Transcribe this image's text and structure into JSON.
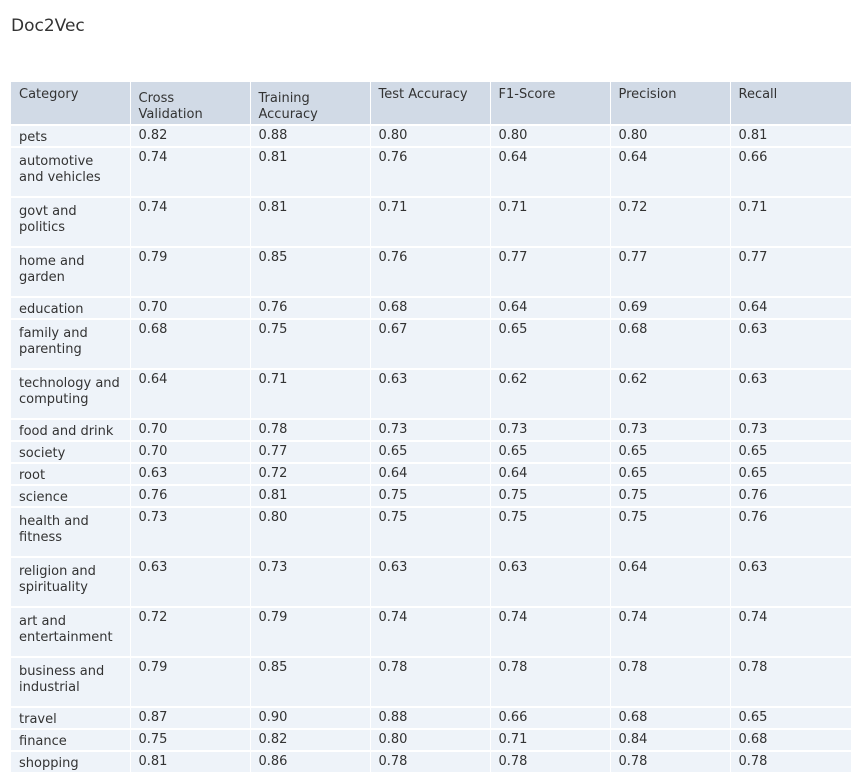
{
  "heading": "Doc2Vec",
  "table": {
    "columns": [
      "Category",
      "Cross Validation",
      "Training Accuracy",
      "Test Accuracy",
      "F1-Score",
      "Precision",
      "Recall"
    ],
    "rows": [
      [
        "pets",
        "0.82",
        "0.88",
        "0.80",
        "0.80",
        "0.80",
        "0.81"
      ],
      [
        "automotive and vehicles",
        "0.74",
        "0.81",
        "0.76",
        "0.64",
        "0.64",
        "0.66"
      ],
      [
        "govt and politics",
        "0.74",
        "0.81",
        "0.71",
        "0.71",
        "0.72",
        "0.71"
      ],
      [
        "home and garden",
        "0.79",
        "0.85",
        "0.76",
        "0.77",
        "0.77",
        "0.77"
      ],
      [
        "education",
        "0.70",
        "0.76",
        "0.68",
        "0.64",
        "0.69",
        "0.64"
      ],
      [
        "family and parenting",
        "0.68",
        "0.75",
        "0.67",
        "0.65",
        "0.68",
        "0.63"
      ],
      [
        "technology and computing",
        "0.64",
        "0.71",
        "0.63",
        "0.62",
        "0.62",
        "0.63"
      ],
      [
        "food and drink",
        "0.70",
        "0.78",
        "0.73",
        "0.73",
        "0.73",
        "0.73"
      ],
      [
        "society",
        "0.70",
        "0.77",
        "0.65",
        "0.65",
        "0.65",
        "0.65"
      ],
      [
        "root",
        "0.63",
        "0.72",
        "0.64",
        "0.64",
        "0.65",
        "0.65"
      ],
      [
        "science",
        "0.76",
        "0.81",
        "0.75",
        "0.75",
        "0.75",
        "0.76"
      ],
      [
        "health and fitness",
        "0.73",
        "0.80",
        "0.75",
        "0.75",
        "0.75",
        "0.76"
      ],
      [
        "religion and spirituality",
        "0.63",
        "0.73",
        "0.63",
        "0.63",
        "0.64",
        "0.63"
      ],
      [
        "art and entertainment",
        "0.72",
        "0.79",
        "0.74",
        "0.74",
        "0.74",
        "0.74"
      ],
      [
        "business and industrial",
        "0.79",
        "0.85",
        "0.78",
        "0.78",
        "0.78",
        "0.78"
      ],
      [
        "travel",
        "0.87",
        "0.90",
        "0.88",
        "0.66",
        "0.68",
        "0.65"
      ],
      [
        "finance",
        "0.75",
        "0.82",
        "0.80",
        "0.71",
        "0.84",
        "0.68"
      ],
      [
        "shopping",
        "0.81",
        "0.86",
        "0.78",
        "0.78",
        "0.78",
        "0.78"
      ]
    ]
  }
}
